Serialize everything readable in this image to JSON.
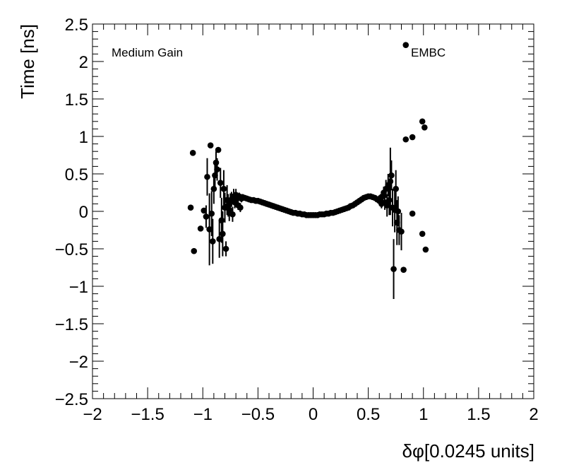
{
  "chart_data": {
    "type": "scatter",
    "xlabel": "δφ[0.0245 units]",
    "ylabel": "Time [ns]",
    "xlim": [
      -2,
      2
    ],
    "ylim": [
      -2.5,
      2.5
    ],
    "x_ticks": [
      "−2",
      "−1.5",
      "−1",
      "−0.5",
      "0",
      "0.5",
      "1",
      "1.5",
      "2"
    ],
    "y_ticks": [
      "−2.5",
      "−2",
      "−1.5",
      "−1",
      "−0.5",
      "0",
      "0.5",
      "1",
      "1.5",
      "2",
      "2.5"
    ],
    "grid": false,
    "annotations": [
      "Medium Gain",
      "EMBC"
    ],
    "series": [
      {
        "marker": "filled-circle",
        "color": "#000000",
        "points": [
          {
            "x": -1.11,
            "y": 0.05,
            "err": 0
          },
          {
            "x": -1.09,
            "y": 0.78,
            "err": 0
          },
          {
            "x": -1.08,
            "y": -0.53,
            "err": 0
          },
          {
            "x": -1.02,
            "y": -0.23,
            "err": 0
          },
          {
            "x": -0.99,
            "y": 0.01,
            "err": 0
          },
          {
            "x": -0.97,
            "y": -0.07,
            "err": 0.15
          },
          {
            "x": -0.96,
            "y": 0.46,
            "err": 0.25
          },
          {
            "x": -0.94,
            "y": -0.24,
            "err": 0.48
          },
          {
            "x": -0.93,
            "y": 0.88,
            "err": 0
          },
          {
            "x": -0.92,
            "y": -0.03,
            "err": 0.3
          },
          {
            "x": -0.91,
            "y": -0.4,
            "err": 0.3
          },
          {
            "x": -0.9,
            "y": 0.3,
            "err": 0.2
          },
          {
            "x": -0.89,
            "y": 0.48,
            "err": 0.2
          },
          {
            "x": -0.88,
            "y": 0.65,
            "err": 0.15
          },
          {
            "x": -0.87,
            "y": 0.56,
            "err": 0.15
          },
          {
            "x": -0.86,
            "y": 0.82,
            "err": 0
          },
          {
            "x": -0.85,
            "y": -0.37,
            "err": 0.25
          },
          {
            "x": -0.84,
            "y": 0.38,
            "err": 0.2
          },
          {
            "x": -0.83,
            "y": -0.12,
            "err": 0.3
          },
          {
            "x": -0.82,
            "y": -0.3,
            "err": 0.3
          },
          {
            "x": -0.81,
            "y": 0.3,
            "err": 0.25
          },
          {
            "x": -0.8,
            "y": 0.05,
            "err": 0.2
          },
          {
            "x": -0.79,
            "y": -0.5,
            "err": 0.1
          },
          {
            "x": -0.78,
            "y": 0.15,
            "err": 0.2
          },
          {
            "x": -0.77,
            "y": 0.08,
            "err": 0.15
          },
          {
            "x": -0.76,
            "y": 0.02,
            "err": 0.15
          },
          {
            "x": -0.75,
            "y": 0.12,
            "err": 0.12
          },
          {
            "x": -0.74,
            "y": 0.16,
            "err": 0.1
          },
          {
            "x": -0.73,
            "y": -0.04,
            "err": 0.1
          },
          {
            "x": -0.72,
            "y": 0.2,
            "err": 0.1
          },
          {
            "x": -0.71,
            "y": 0.12,
            "err": 0.08
          },
          {
            "x": -0.7,
            "y": 0.22,
            "err": 0.08
          },
          {
            "x": -0.69,
            "y": 0.17,
            "err": 0.06
          },
          {
            "x": -0.68,
            "y": 0.08,
            "err": 0.06
          },
          {
            "x": -0.67,
            "y": 0.2,
            "err": 0.05
          },
          {
            "x": -0.66,
            "y": 0.05,
            "err": 0.06
          },
          {
            "x": -0.65,
            "y": 0.17,
            "err": 0.05
          },
          {
            "x": -0.64,
            "y": 0.19,
            "err": 0.04
          },
          {
            "x": -0.62,
            "y": 0.18,
            "err": 0.03
          },
          {
            "x": -0.6,
            "y": 0.17,
            "err": 0.02
          },
          {
            "x": -0.58,
            "y": 0.16,
            "err": 0.02
          },
          {
            "x": -0.56,
            "y": 0.15,
            "err": 0.02
          },
          {
            "x": -0.54,
            "y": 0.15,
            "err": 0.02
          },
          {
            "x": -0.52,
            "y": 0.14,
            "err": 0.01
          },
          {
            "x": -0.5,
            "y": 0.14,
            "err": 0.01
          },
          {
            "x": -0.48,
            "y": 0.13,
            "err": 0.01
          },
          {
            "x": -0.46,
            "y": 0.12,
            "err": 0.01
          },
          {
            "x": -0.44,
            "y": 0.11,
            "err": 0.01
          },
          {
            "x": -0.42,
            "y": 0.1,
            "err": 0.01
          },
          {
            "x": -0.4,
            "y": 0.09,
            "err": 0.01
          },
          {
            "x": -0.38,
            "y": 0.08,
            "err": 0.01
          },
          {
            "x": -0.36,
            "y": 0.07,
            "err": 0.01
          },
          {
            "x": -0.34,
            "y": 0.06,
            "err": 0.01
          },
          {
            "x": -0.32,
            "y": 0.05,
            "err": 0.01
          },
          {
            "x": -0.3,
            "y": 0.04,
            "err": 0.01
          },
          {
            "x": -0.28,
            "y": 0.03,
            "err": 0.01
          },
          {
            "x": -0.26,
            "y": 0.02,
            "err": 0.01
          },
          {
            "x": -0.24,
            "y": 0.01,
            "err": 0.01
          },
          {
            "x": -0.22,
            "y": 0.0,
            "err": 0.01
          },
          {
            "x": -0.2,
            "y": -0.01,
            "err": 0.01
          },
          {
            "x": -0.18,
            "y": -0.02,
            "err": 0.01
          },
          {
            "x": -0.16,
            "y": -0.02,
            "err": 0.01
          },
          {
            "x": -0.14,
            "y": -0.03,
            "err": 0.01
          },
          {
            "x": -0.12,
            "y": -0.03,
            "err": 0.01
          },
          {
            "x": -0.1,
            "y": -0.04,
            "err": 0.01
          },
          {
            "x": -0.08,
            "y": -0.04,
            "err": 0.01
          },
          {
            "x": -0.06,
            "y": -0.05,
            "err": 0.01
          },
          {
            "x": -0.04,
            "y": -0.05,
            "err": 0.01
          },
          {
            "x": -0.02,
            "y": -0.05,
            "err": 0.01
          },
          {
            "x": 0.0,
            "y": -0.05,
            "err": 0.01
          },
          {
            "x": 0.02,
            "y": -0.05,
            "err": 0.01
          },
          {
            "x": 0.04,
            "y": -0.05,
            "err": 0.01
          },
          {
            "x": 0.06,
            "y": -0.04,
            "err": 0.01
          },
          {
            "x": 0.08,
            "y": -0.04,
            "err": 0.01
          },
          {
            "x": 0.1,
            "y": -0.04,
            "err": 0.01
          },
          {
            "x": 0.12,
            "y": -0.03,
            "err": 0.01
          },
          {
            "x": 0.14,
            "y": -0.03,
            "err": 0.01
          },
          {
            "x": 0.16,
            "y": -0.02,
            "err": 0.01
          },
          {
            "x": 0.18,
            "y": -0.02,
            "err": 0.01
          },
          {
            "x": 0.2,
            "y": -0.01,
            "err": 0.01
          },
          {
            "x": 0.22,
            "y": 0.0,
            "err": 0.01
          },
          {
            "x": 0.24,
            "y": 0.01,
            "err": 0.01
          },
          {
            "x": 0.26,
            "y": 0.02,
            "err": 0.01
          },
          {
            "x": 0.28,
            "y": 0.03,
            "err": 0.01
          },
          {
            "x": 0.3,
            "y": 0.04,
            "err": 0.01
          },
          {
            "x": 0.32,
            "y": 0.05,
            "err": 0.01
          },
          {
            "x": 0.34,
            "y": 0.07,
            "err": 0.01
          },
          {
            "x": 0.36,
            "y": 0.08,
            "err": 0.01
          },
          {
            "x": 0.38,
            "y": 0.1,
            "err": 0.01
          },
          {
            "x": 0.4,
            "y": 0.12,
            "err": 0.01
          },
          {
            "x": 0.42,
            "y": 0.14,
            "err": 0.01
          },
          {
            "x": 0.44,
            "y": 0.16,
            "err": 0.01
          },
          {
            "x": 0.46,
            "y": 0.18,
            "err": 0.02
          },
          {
            "x": 0.48,
            "y": 0.19,
            "err": 0.02
          },
          {
            "x": 0.5,
            "y": 0.2,
            "err": 0.02
          },
          {
            "x": 0.52,
            "y": 0.2,
            "err": 0.02
          },
          {
            "x": 0.54,
            "y": 0.19,
            "err": 0.02
          },
          {
            "x": 0.56,
            "y": 0.18,
            "err": 0.03
          },
          {
            "x": 0.58,
            "y": 0.16,
            "err": 0.03
          },
          {
            "x": 0.6,
            "y": 0.14,
            "err": 0.04
          },
          {
            "x": 0.61,
            "y": 0.18,
            "err": 0.05
          },
          {
            "x": 0.62,
            "y": 0.1,
            "err": 0.06
          },
          {
            "x": 0.63,
            "y": 0.2,
            "err": 0.06
          },
          {
            "x": 0.64,
            "y": 0.25,
            "err": 0.08
          },
          {
            "x": 0.65,
            "y": 0.12,
            "err": 0.1
          },
          {
            "x": 0.66,
            "y": 0.3,
            "err": 0.12
          },
          {
            "x": 0.67,
            "y": 0.08,
            "err": 0.15
          },
          {
            "x": 0.68,
            "y": 0.35,
            "err": 0.15
          },
          {
            "x": 0.69,
            "y": 0.15,
            "err": 0.2
          },
          {
            "x": 0.7,
            "y": 0.4,
            "err": 0.45
          },
          {
            "x": 0.71,
            "y": 0.48,
            "err": 0.2
          },
          {
            "x": 0.72,
            "y": 0.05,
            "err": 0.25
          },
          {
            "x": 0.73,
            "y": -0.77,
            "err": 0.4
          },
          {
            "x": 0.74,
            "y": 0.02,
            "err": 0.3
          },
          {
            "x": 0.75,
            "y": 0.3,
            "err": 0.25
          },
          {
            "x": 0.76,
            "y": -0.15,
            "err": 0.3
          },
          {
            "x": 0.77,
            "y": 0.0,
            "err": 0.2
          },
          {
            "x": 0.78,
            "y": -0.25,
            "err": 0.2
          },
          {
            "x": 0.8,
            "y": -0.27,
            "err": 0.25
          },
          {
            "x": 0.82,
            "y": -0.78,
            "err": 0
          },
          {
            "x": 0.84,
            "y": 0.96,
            "err": 0
          },
          {
            "x": 0.84,
            "y": 2.22,
            "err": 0
          },
          {
            "x": 0.9,
            "y": 0.99,
            "err": 0
          },
          {
            "x": 0.9,
            "y": -0.03,
            "err": 0
          },
          {
            "x": 0.99,
            "y": 1.2,
            "err": 0
          },
          {
            "x": 0.99,
            "y": -0.3,
            "err": 0
          },
          {
            "x": 1.01,
            "y": 1.12,
            "err": 0
          },
          {
            "x": 1.02,
            "y": -0.51,
            "err": 0
          }
        ]
      }
    ]
  }
}
